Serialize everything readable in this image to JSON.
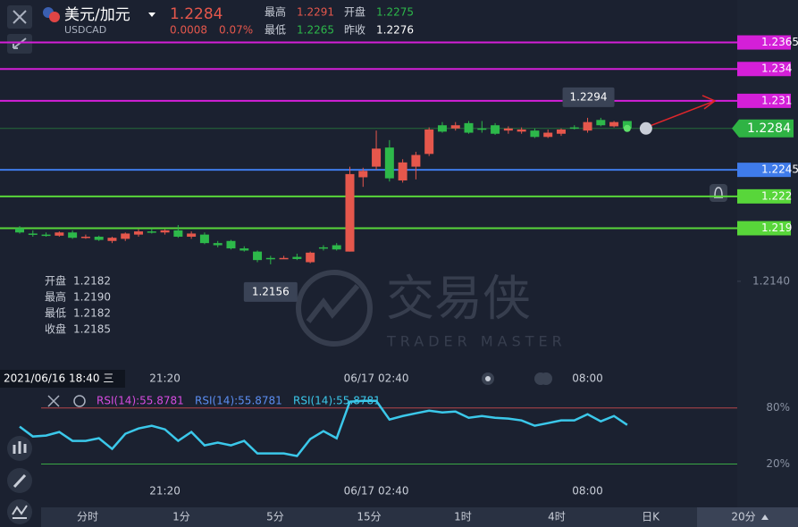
{
  "header": {
    "pair": "美元/加元",
    "symbol": "USDCAD",
    "price": "1.2284",
    "change": "0.0008",
    "change_pct": "0.07%",
    "stats": [
      [
        "最高",
        "1.2291"
      ],
      [
        "开盘",
        "1.2275"
      ],
      [
        "最低",
        "1.2265"
      ],
      [
        "昨收",
        "1.2276"
      ]
    ]
  },
  "crosshair_time": "2021/06/16 18:40 三",
  "ohlc_info": [
    [
      "开盘",
      "1.2182"
    ],
    [
      "最高",
      "1.2190"
    ],
    [
      "最低",
      "1.2182"
    ],
    [
      "收盘",
      "1.2185"
    ]
  ],
  "watermark": {
    "cn": "交易侠",
    "en": "TRADER MASTER"
  },
  "timeframes": [
    "分时",
    "1分",
    "5分",
    "15分",
    "1时",
    "4时",
    "日K",
    "20分"
  ],
  "chart_data": [
    {
      "type": "candlestick",
      "categories": [
        null,
        null,
        null,
        null,
        null,
        null,
        null,
        null,
        null,
        null,
        null,
        "21:20",
        null,
        null,
        null,
        null,
        null,
        null,
        null,
        null,
        null,
        null,
        null,
        null,
        null,
        null,
        null,
        "06/17 02:40",
        null,
        null,
        null,
        null,
        null,
        null,
        null,
        null,
        null,
        null,
        null,
        null,
        null,
        null,
        null,
        "08:00",
        null,
        null,
        null
      ],
      "open": [
        1.219,
        1.2185,
        1.2184,
        1.2183,
        1.2186,
        1.2181,
        1.2182,
        1.2178,
        1.218,
        1.2184,
        1.2187,
        1.2186,
        1.2188,
        1.2182,
        1.2184,
        1.2176,
        1.2178,
        1.2171,
        1.2168,
        1.2162,
        1.2162,
        1.2163,
        1.2158,
        1.2172,
        1.2174,
        1.2168,
        1.2238,
        1.2248,
        1.2266,
        1.2235,
        1.2248,
        1.226,
        1.2287,
        1.2284,
        1.2289,
        1.2284,
        1.2287,
        1.2282,
        1.2281,
        1.2282,
        1.2276,
        1.2279,
        1.2285,
        1.2282,
        1.2292,
        1.2286,
        1.2291
      ],
      "high": [
        1.2192,
        1.2188,
        1.2186,
        1.2187,
        1.2188,
        1.2184,
        1.2183,
        1.2182,
        1.2186,
        1.2189,
        1.219,
        1.2189,
        1.2193,
        1.2187,
        1.2186,
        1.2178,
        1.2179,
        1.2173,
        1.2169,
        1.2164,
        1.2164,
        1.2166,
        1.2168,
        1.2174,
        1.2176,
        1.2248,
        1.2247,
        1.2282,
        1.2273,
        1.2255,
        1.2262,
        1.2285,
        1.229,
        1.229,
        1.2291,
        1.2291,
        1.2289,
        1.2286,
        1.2285,
        1.2284,
        1.2283,
        1.2284,
        1.2287,
        1.2294,
        1.2294,
        1.2291,
        1.2291
      ],
      "low": [
        1.2185,
        1.2182,
        1.2182,
        1.2182,
        1.218,
        1.218,
        1.2178,
        1.2176,
        1.2178,
        1.2182,
        1.2185,
        1.2184,
        1.2181,
        1.218,
        1.2175,
        1.2172,
        1.217,
        1.2168,
        1.2158,
        1.2156,
        1.2161,
        1.216,
        1.2157,
        1.2169,
        1.2169,
        1.2168,
        1.2229,
        1.2245,
        1.2234,
        1.2233,
        1.2236,
        1.2258,
        1.228,
        1.2282,
        1.2279,
        1.228,
        1.2278,
        1.2279,
        1.2279,
        1.2275,
        1.2275,
        1.2277,
        1.2283,
        1.228,
        1.2286,
        1.2285,
        1.2284
      ],
      "close": [
        1.2186,
        1.2184,
        1.2183,
        1.2186,
        1.2181,
        1.2182,
        1.2179,
        1.2181,
        1.2185,
        1.2187,
        1.2186,
        1.2188,
        1.2182,
        1.2185,
        1.2176,
        1.2174,
        1.2171,
        1.2169,
        1.216,
        1.2161,
        1.2162,
        1.2161,
        1.2167,
        1.2171,
        1.217,
        1.2241,
        1.2244,
        1.2265,
        1.2237,
        1.2252,
        1.2259,
        1.2283,
        1.2281,
        1.2287,
        1.228,
        1.2283,
        1.2279,
        1.2284,
        1.2283,
        1.2276,
        1.228,
        1.2283,
        1.2284,
        1.229,
        1.2287,
        1.229,
        1.2284
      ],
      "up_color": "#e5574c",
      "down_color": "#2db84a",
      "ylim": [
        1.206,
        1.2405
      ],
      "yticks": [
        {
          "value": 1.214,
          "label": "1.2140"
        }
      ],
      "levels": [
        {
          "value": 1.2365,
          "color": "#d41fd8"
        },
        {
          "value": 1.234,
          "color": "#d41fd8"
        },
        {
          "value": 1.231,
          "color": "#d41fd8"
        },
        {
          "value": 1.2245,
          "color": "#3f7bea"
        },
        {
          "value": 1.222,
          "color": "#58d63a"
        },
        {
          "value": 1.219,
          "color": "#58d63a"
        }
      ],
      "current_price": {
        "value": 1.2284,
        "color": "#2fb344"
      },
      "annotations": {
        "high": "1.2294",
        "low": "1.2156"
      }
    },
    {
      "type": "line",
      "categories": [
        null,
        null,
        null,
        null,
        null,
        null,
        null,
        null,
        null,
        null,
        null,
        "21:20",
        null,
        null,
        null,
        null,
        null,
        null,
        null,
        null,
        null,
        null,
        null,
        null,
        null,
        null,
        null,
        "06/17 02:40",
        null,
        null,
        null,
        null,
        null,
        null,
        null,
        null,
        null,
        null,
        null,
        null,
        null,
        null,
        null,
        "08:00",
        null,
        null,
        null
      ],
      "values": [
        60,
        49.5,
        50.5,
        54.3,
        44.8,
        44.8,
        47.6,
        36.2,
        52.4,
        58.1,
        61,
        57.1,
        44.8,
        54.3,
        40,
        42.9,
        40,
        44.8,
        31.4,
        31.4,
        31.4,
        28.6,
        46.7,
        55.2,
        47.6,
        86.7,
        87.6,
        87.6,
        67.6,
        71.4,
        74.3,
        77.1,
        75.2,
        76.2,
        69.5,
        71.4,
        69.5,
        68.6,
        66.7,
        61,
        63.8,
        66.7,
        66.7,
        73.3,
        65.7,
        71.4,
        61.9
      ],
      "color": "#3bc8ea",
      "indicator_labels": [
        {
          "text": "RSI(14):55.8781",
          "color": "#d64be0"
        },
        {
          "text": "RSI(14):55.8781",
          "color": "#5b8df0"
        },
        {
          "text": "RSI(14):55.8781",
          "color": "#3bc8ea"
        }
      ],
      "ylim": [
        10,
        96
      ],
      "yticks": [
        {
          "value": 80,
          "label": "80%"
        },
        {
          "value": 20,
          "label": "20%"
        }
      ],
      "ytick_colors": [
        "#b8474a",
        "#3aa845"
      ]
    }
  ]
}
